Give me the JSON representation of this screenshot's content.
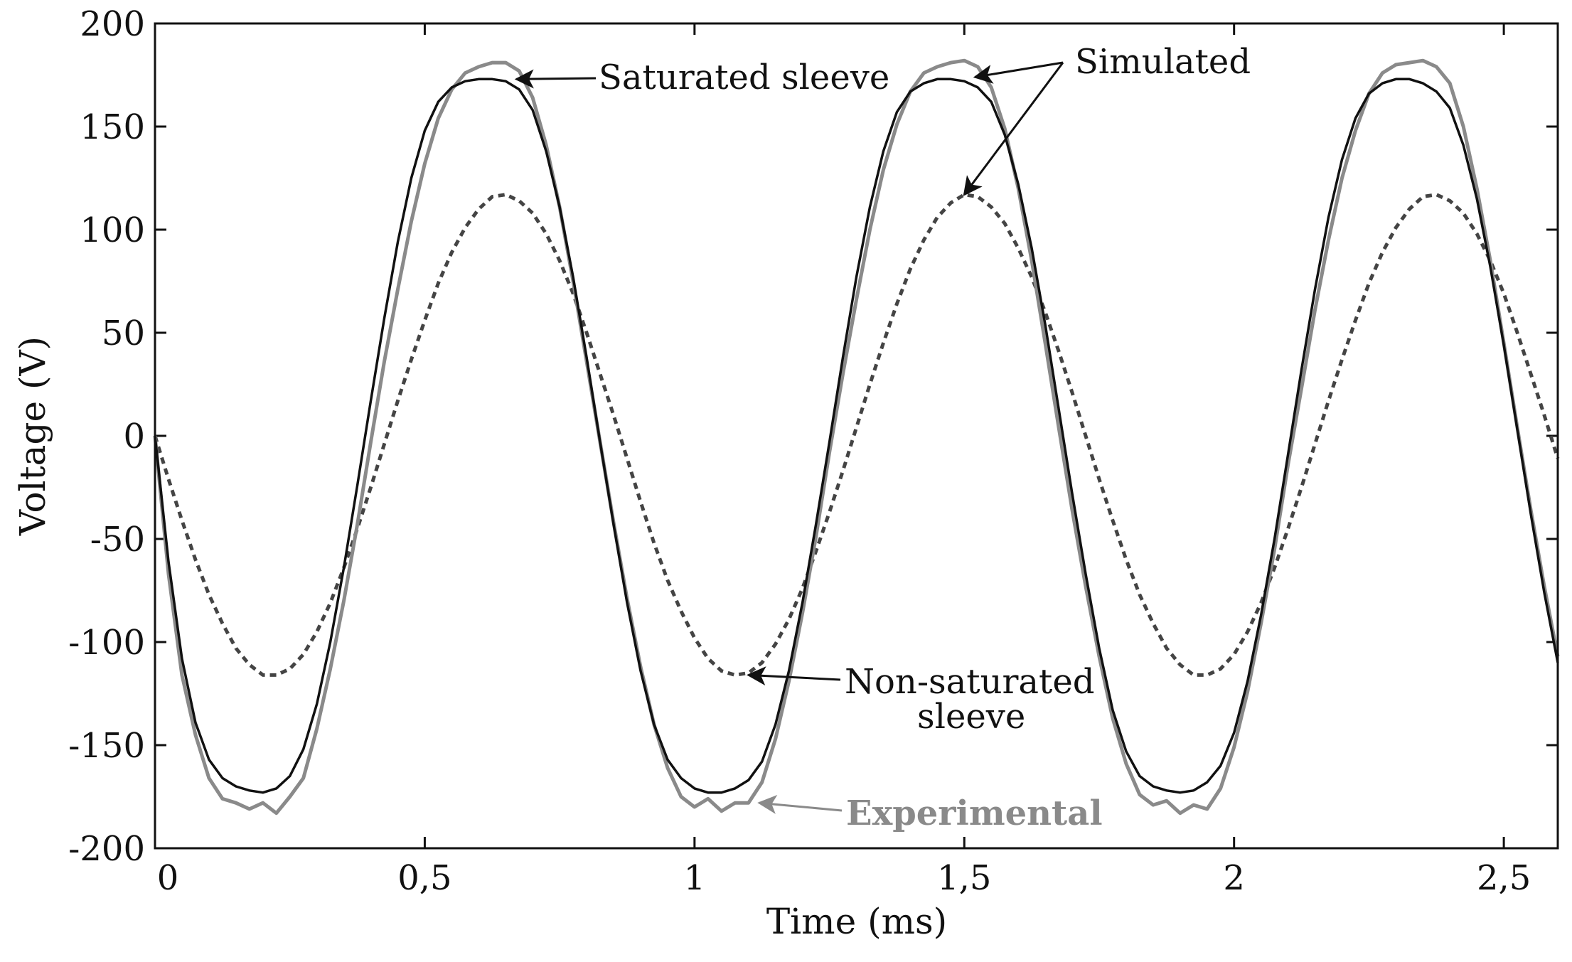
{
  "chart_data": {
    "type": "line",
    "title": "",
    "xlabel": "Time (ms)",
    "ylabel": "Voltage (V)",
    "xlim": [
      0,
      2.6
    ],
    "ylim": [
      -200,
      200
    ],
    "xticks": [
      0,
      0.5,
      1,
      1.5,
      2,
      2.5
    ],
    "xtick_labels": [
      "0",
      "0,5",
      "1",
      "1,5",
      "2",
      "2,5"
    ],
    "yticks": [
      -200,
      -150,
      -100,
      -50,
      0,
      50,
      100,
      150,
      200
    ],
    "ytick_labels": [
      "-200",
      "-150",
      "-100",
      "-50",
      "0",
      "50",
      "100",
      "150",
      "200"
    ],
    "series": [
      {
        "name": "Experimental",
        "style": "solid",
        "color": "#8a8a8a",
        "x": [
          0,
          0.025,
          0.05,
          0.075,
          0.1,
          0.125,
          0.15,
          0.175,
          0.2,
          0.225,
          0.25,
          0.275,
          0.3,
          0.325,
          0.35,
          0.375,
          0.4,
          0.425,
          0.45,
          0.475,
          0.5,
          0.525,
          0.55,
          0.575,
          0.6,
          0.625,
          0.65,
          0.675,
          0.7,
          0.725,
          0.75,
          0.775,
          0.8,
          0.825,
          0.85,
          0.875,
          0.9,
          0.925,
          0.95,
          0.975,
          1.0,
          1.025,
          1.05,
          1.075,
          1.1,
          1.125,
          1.15,
          1.175,
          1.2,
          1.225,
          1.25,
          1.275,
          1.3,
          1.325,
          1.35,
          1.375,
          1.4,
          1.425,
          1.45,
          1.475,
          1.5,
          1.525,
          1.55,
          1.575,
          1.6,
          1.625,
          1.65,
          1.675,
          1.7,
          1.725,
          1.75,
          1.775,
          1.8,
          1.825,
          1.85,
          1.875,
          1.9,
          1.925,
          1.95,
          1.975,
          2.0,
          2.025,
          2.05,
          2.075,
          2.1,
          2.125,
          2.15,
          2.175,
          2.2,
          2.225,
          2.25,
          2.275,
          2.3,
          2.325,
          2.35,
          2.375,
          2.4,
          2.425,
          2.45,
          2.475,
          2.5,
          2.525,
          2.55,
          2.575,
          2.6
        ],
        "values": [
          0,
          -67,
          -116,
          -145,
          -166,
          -176,
          -178,
          -181,
          -178,
          -183,
          -175,
          -166,
          -142,
          -113,
          -80,
          -43,
          -3,
          36,
          71,
          104,
          132,
          154,
          168,
          176,
          179,
          181,
          181,
          177,
          164,
          141,
          111,
          75,
          36,
          -3,
          -42,
          -79,
          -112,
          -140,
          -161,
          -175,
          -180,
          -176,
          -182,
          -178,
          -178,
          -168,
          -147,
          -119,
          -86,
          -49,
          -8,
          30,
          66,
          100,
          129,
          151,
          167,
          176,
          179,
          181,
          182,
          179,
          169,
          149,
          120,
          85,
          45,
          4,
          -36,
          -73,
          -107,
          -137,
          -159,
          -174,
          -179,
          -177,
          -183,
          -179,
          -181,
          -171,
          -151,
          -124,
          -91,
          -55,
          -14,
          23,
          61,
          95,
          125,
          148,
          166,
          176,
          180,
          181,
          182,
          179,
          171,
          150,
          120,
          85,
          45,
          4,
          -36,
          -73,
          -107
        ]
      },
      {
        "name": "Simulated — Saturated sleeve",
        "style": "solid",
        "color": "#111111",
        "x": [
          0,
          0.025,
          0.05,
          0.075,
          0.1,
          0.125,
          0.15,
          0.175,
          0.2,
          0.225,
          0.25,
          0.275,
          0.3,
          0.325,
          0.35,
          0.375,
          0.4,
          0.425,
          0.45,
          0.475,
          0.5,
          0.525,
          0.55,
          0.575,
          0.6,
          0.625,
          0.65,
          0.675,
          0.7,
          0.725,
          0.75,
          0.775,
          0.8,
          0.825,
          0.85,
          0.875,
          0.9,
          0.925,
          0.95,
          0.975,
          1.0,
          1.025,
          1.05,
          1.075,
          1.1,
          1.125,
          1.15,
          1.175,
          1.2,
          1.225,
          1.25,
          1.275,
          1.3,
          1.325,
          1.35,
          1.375,
          1.4,
          1.425,
          1.45,
          1.475,
          1.5,
          1.525,
          1.55,
          1.575,
          1.6,
          1.625,
          1.65,
          1.675,
          1.7,
          1.725,
          1.75,
          1.775,
          1.8,
          1.825,
          1.85,
          1.875,
          1.9,
          1.925,
          1.95,
          1.975,
          2.0,
          2.025,
          2.05,
          2.075,
          2.1,
          2.125,
          2.15,
          2.175,
          2.2,
          2.225,
          2.25,
          2.275,
          2.3,
          2.325,
          2.35,
          2.375,
          2.4,
          2.425,
          2.45,
          2.475,
          2.5,
          2.525,
          2.55,
          2.575,
          2.6
        ],
        "values": [
          0,
          -61,
          -108,
          -139,
          -157,
          -166,
          -170,
          -172,
          -173,
          -171,
          -165,
          -152,
          -130,
          -100,
          -64,
          -24,
          17,
          57,
          94,
          125,
          148,
          162,
          169,
          172,
          173,
          173,
          172,
          168,
          158,
          138,
          111,
          77,
          38,
          -3,
          -43,
          -81,
          -114,
          -140,
          -157,
          -166,
          -171,
          -173,
          -173,
          -171,
          -167,
          -158,
          -140,
          -114,
          -81,
          -43,
          -3,
          38,
          77,
          111,
          138,
          157,
          167,
          171,
          173,
          173,
          172,
          169,
          162,
          146,
          122,
          91,
          54,
          13,
          -28,
          -67,
          -103,
          -133,
          -153,
          -165,
          -170,
          -172,
          -173,
          -172,
          -168,
          -160,
          -144,
          -119,
          -87,
          -50,
          -9,
          32,
          71,
          106,
          134,
          154,
          166,
          171,
          173,
          173,
          171,
          167,
          159,
          141,
          115,
          82,
          44,
          3,
          -38,
          -76,
          -110
        ]
      },
      {
        "name": "Simulated — Non-saturated sleeve",
        "style": "dotted",
        "color": "#444444",
        "x": [
          0,
          0.025,
          0.05,
          0.075,
          0.1,
          0.125,
          0.15,
          0.175,
          0.2,
          0.225,
          0.25,
          0.275,
          0.3,
          0.325,
          0.35,
          0.375,
          0.4,
          0.425,
          0.45,
          0.475,
          0.5,
          0.525,
          0.55,
          0.575,
          0.6,
          0.625,
          0.65,
          0.675,
          0.7,
          0.725,
          0.75,
          0.775,
          0.8,
          0.825,
          0.85,
          0.875,
          0.9,
          0.925,
          0.95,
          0.975,
          1.0,
          1.025,
          1.05,
          1.075,
          1.1,
          1.125,
          1.15,
          1.175,
          1.2,
          1.225,
          1.25,
          1.275,
          1.3,
          1.325,
          1.35,
          1.375,
          1.4,
          1.425,
          1.45,
          1.475,
          1.5,
          1.525,
          1.55,
          1.575,
          1.6,
          1.625,
          1.65,
          1.675,
          1.7,
          1.725,
          1.75,
          1.775,
          1.8,
          1.825,
          1.85,
          1.875,
          1.9,
          1.925,
          1.95,
          1.975,
          2.0,
          2.025,
          2.05,
          2.075,
          2.1,
          2.125,
          2.15,
          2.175,
          2.2,
          2.225,
          2.25,
          2.275,
          2.3,
          2.325,
          2.35,
          2.375,
          2.4,
          2.425,
          2.45,
          2.475,
          2.5,
          2.525,
          2.55,
          2.575,
          2.6
        ],
        "values": [
          0,
          -21,
          -41,
          -60,
          -77,
          -91,
          -103,
          -111,
          -116,
          -116,
          -113,
          -106,
          -95,
          -81,
          -64,
          -45,
          -25,
          -4,
          17,
          37,
          56,
          74,
          89,
          101,
          110,
          116,
          117,
          114,
          108,
          98,
          85,
          69,
          50,
          30,
          10,
          -11,
          -32,
          -52,
          -70,
          -85,
          -98,
          -108,
          -114,
          -116,
          -115,
          -110,
          -101,
          -89,
          -74,
          -56,
          -37,
          -17,
          4,
          25,
          45,
          64,
          81,
          95,
          106,
          113,
          117,
          116,
          111,
          103,
          91,
          77,
          60,
          41,
          21,
          0,
          -21,
          -41,
          -60,
          -77,
          -91,
          -103,
          -111,
          -116,
          -116,
          -113,
          -106,
          -95,
          -81,
          -64,
          -45,
          -25,
          -4,
          17,
          37,
          56,
          74,
          89,
          101,
          110,
          116,
          117,
          114,
          108,
          98,
          85,
          69,
          50,
          30,
          10,
          -11
        ]
      }
    ],
    "annotations": {
      "saturated": "Saturated sleeve",
      "simulated": "Simulated",
      "non_saturated_line1": "Non-saturated",
      "non_saturated_line2": "sleeve",
      "experimental": "Experimental"
    },
    "annotation_arrows": [
      {
        "label": "saturated",
        "tip": [
          0.67,
          173
        ]
      },
      {
        "label": "simulated",
        "tip": [
          1.52,
          174
        ]
      },
      {
        "label": "simulated",
        "tip": [
          1.5,
          117
        ]
      },
      {
        "label": "non_saturated",
        "tip": [
          1.1,
          -116
        ]
      },
      {
        "label": "experimental",
        "tip": [
          1.12,
          -178
        ]
      }
    ]
  },
  "colors": {
    "experimental": "#8a8a8a",
    "simulated": "#111111",
    "non_saturated": "#444444",
    "axis": "#111111",
    "background": "#ffffff"
  }
}
